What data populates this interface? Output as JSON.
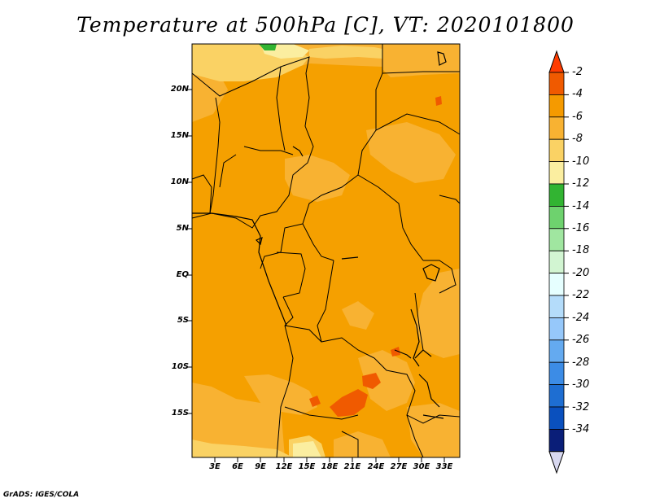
{
  "title": "Temperature at 500hPa [C], VT: 2020101800",
  "credit": "GrADS: IGES/COLA",
  "map": {
    "lat_labels": [
      "20N",
      "15N",
      "10N",
      "5N",
      "EQ",
      "5S",
      "10S",
      "15S"
    ],
    "lon_labels": [
      "3E",
      "6E",
      "9E",
      "12E",
      "15E",
      "18E",
      "21E",
      "24E",
      "27E",
      "30E",
      "33E"
    ]
  },
  "colorbar": {
    "labels": [
      "-2",
      "-4",
      "-6",
      "-8",
      "-10",
      "-12",
      "-14",
      "-16",
      "-18",
      "-20",
      "-22",
      "-24",
      "-26",
      "-28",
      "-30",
      "-32",
      "-34"
    ],
    "colors": [
      "#f05a00",
      "#f59a00",
      "#f8b232",
      "#fad264",
      "#fbeea0",
      "#32b432",
      "#6ed26e",
      "#a0e6a0",
      "#d2f5d2",
      "#e6ffff",
      "#b4dcfa",
      "#96c8fa",
      "#64aaf0",
      "#3c8ce6",
      "#1e6ed2",
      "#0a50be",
      "#0a1e78"
    ],
    "top_arrow_color": "#ff3c00",
    "bottom_arrow_color": "#d8d8f0"
  },
  "fill_colors": {
    "base": "#f5a000",
    "light": "#f8b232",
    "pale": "#fad264",
    "warm": "#f05a00",
    "green": "#32b432"
  }
}
